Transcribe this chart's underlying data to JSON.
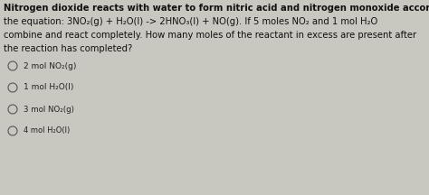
{
  "background_color": "#c8c8c0",
  "text_color": "#111111",
  "option_color": "#222222",
  "circle_color": "#555555",
  "lines": [
    "Nitrogen dioxide reacts with water to form nitric acid and nitrogen monoxide according to",
    "the equation: 3NO₂(g) + H₂O(l) -> 2HNO₃(l) + NO(g). If 5 moles NO₂ and 1 mol H₂O",
    "combine and react completely. How many moles of the reactant in excess are present after",
    "the reaction has completed?"
  ],
  "line_weights": [
    "bold",
    "normal",
    "normal",
    "normal"
  ],
  "line_font_sizes": [
    7.2,
    7.2,
    7.2,
    7.2
  ],
  "options": [
    "2 mol NO₂(g)",
    "1 mol H₂O(l)",
    "3 mol NO₂(g)",
    "4 mol H₂O(l)"
  ],
  "option_font_sizes": [
    6.5,
    6.5,
    6.2,
    6.0
  ],
  "fig_width": 4.74,
  "fig_height": 2.16,
  "dpi": 100
}
